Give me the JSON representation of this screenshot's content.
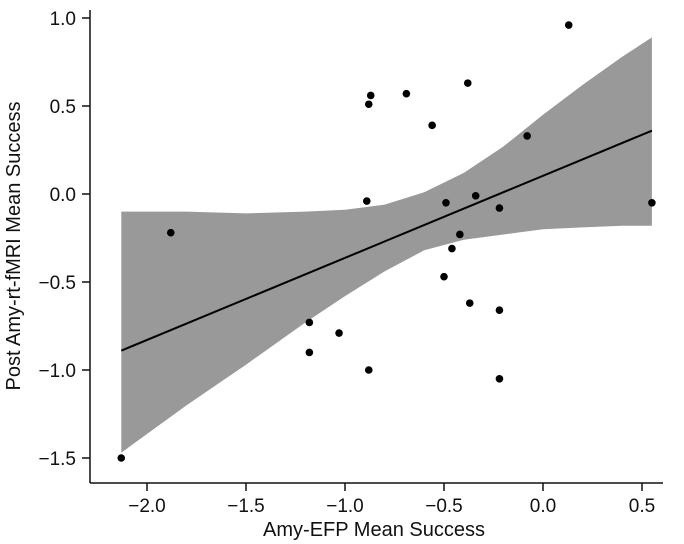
{
  "chart_data": {
    "type": "scatter",
    "title": "",
    "xlabel": "Amy-EFP Mean Success",
    "ylabel": "Post Amy-rt-fMRI Mean Success",
    "xlim": [
      -2.15,
      0.57
    ],
    "ylim": [
      -1.6,
      1.05
    ],
    "xticks": [
      -2.0,
      -1.5,
      -1.0,
      -0.5,
      0.0,
      0.5
    ],
    "xtick_labels": [
      "−2.0",
      "−1.5",
      "−1.0",
      "−0.5",
      "0.0",
      "0.5"
    ],
    "yticks": [
      1.0,
      0.5,
      0.0,
      -0.5,
      -1.0,
      -1.5
    ],
    "ytick_labels": [
      "1.0",
      "0.5",
      "0.0",
      "−0.5",
      "−1.0",
      "−1.5"
    ],
    "grid": false,
    "points": [
      {
        "x": -2.13,
        "y": -1.5
      },
      {
        "x": -1.88,
        "y": -0.22
      },
      {
        "x": -1.18,
        "y": -0.73
      },
      {
        "x": -1.18,
        "y": -0.9
      },
      {
        "x": -1.03,
        "y": -0.79
      },
      {
        "x": -0.89,
        "y": -0.04
      },
      {
        "x": -0.88,
        "y": 0.51
      },
      {
        "x": -0.87,
        "y": 0.56
      },
      {
        "x": -0.88,
        "y": -1.0
      },
      {
        "x": -0.69,
        "y": 0.57
      },
      {
        "x": -0.56,
        "y": 0.39
      },
      {
        "x": -0.5,
        "y": -0.47
      },
      {
        "x": -0.49,
        "y": -0.05
      },
      {
        "x": -0.46,
        "y": -0.31
      },
      {
        "x": -0.42,
        "y": -0.23
      },
      {
        "x": -0.38,
        "y": 0.63
      },
      {
        "x": -0.37,
        "y": -0.62
      },
      {
        "x": -0.34,
        "y": -0.01
      },
      {
        "x": -0.22,
        "y": -0.08
      },
      {
        "x": -0.22,
        "y": -0.66
      },
      {
        "x": -0.22,
        "y": -1.05
      },
      {
        "x": -0.08,
        "y": 0.33
      },
      {
        "x": 0.13,
        "y": 0.96
      },
      {
        "x": 0.55,
        "y": -0.05
      }
    ],
    "regression_line": {
      "x": [
        -2.13,
        0.55
      ],
      "y": [
        -0.89,
        0.36
      ]
    },
    "confidence_band": {
      "x": [
        -2.13,
        -1.8,
        -1.5,
        -1.2,
        -1.0,
        -0.8,
        -0.6,
        -0.4,
        -0.2,
        0.0,
        0.2,
        0.4,
        0.55
      ],
      "upper": [
        -0.1,
        -0.1,
        -0.11,
        -0.1,
        -0.09,
        -0.06,
        0.01,
        0.12,
        0.27,
        0.45,
        0.62,
        0.78,
        0.89
      ],
      "lower": [
        -1.47,
        -1.2,
        -0.97,
        -0.73,
        -0.58,
        -0.44,
        -0.32,
        -0.26,
        -0.23,
        -0.2,
        -0.19,
        -0.18,
        -0.18
      ]
    },
    "colors": {
      "band": "#999999",
      "line": "#000000",
      "point": "#000000",
      "axis": "#111111"
    }
  }
}
